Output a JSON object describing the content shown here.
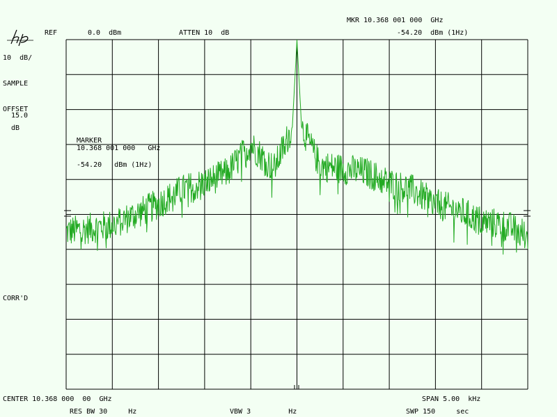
{
  "header": {
    "ref_label": "REF",
    "ref_value": "0.0  dBm",
    "atten": "ATTEN 10  dB",
    "mkr_freq": "MKR 10.368 001 000  GHz",
    "mkr_level": "-54.20  dBm (1Hz)"
  },
  "side": {
    "scale": "10  dB/",
    "detector": "SAMPLE",
    "offset_label": "OFFSET",
    "offset_value": "15.0",
    "offset_unit": "dB",
    "corr": "CORR'D"
  },
  "marker_box": {
    "title": "MARKER",
    "freq": "10.368 001 000   GHz",
    "level": "-54.20   dBm (1Hz)"
  },
  "footer": {
    "center": "CENTER 10.368 000  00  GHz",
    "span": "SPAN 5.00  kHz",
    "rbw": "RES BW 30     Hz",
    "vbw": "VBW 3         Hz",
    "swp": "SWP 150     sec"
  },
  "colors": {
    "trace": "#22aa22",
    "grid": "#000000",
    "background": "#f3fff3"
  },
  "chart_data": {
    "type": "line",
    "center_ghz": 10.368,
    "span_khz": 5.0,
    "reference_level_dbm": 0.0,
    "scale_db_per_div": 10,
    "x_divisions": 10,
    "y_divisions": 10,
    "x_offset_khz": [
      -2.5,
      -2.25,
      -2.0,
      -1.75,
      -1.5,
      -1.25,
      -1.0,
      -0.75,
      -0.5,
      -0.25,
      -0.05,
      0.0,
      0.05,
      0.25,
      0.5,
      0.75,
      1.0,
      1.25,
      1.5,
      1.75,
      2.0,
      2.25,
      2.5
    ],
    "y_dbm": [
      -55,
      -54,
      -53,
      -50,
      -47,
      -43,
      -41,
      -38,
      -30,
      -37,
      -25,
      0,
      -25,
      -36,
      -37,
      -38,
      -41,
      -43,
      -47,
      -49,
      -52,
      -53,
      -56
    ],
    "marker": {
      "x_offset_khz": 0.001,
      "level_dbm": -54.2
    }
  }
}
